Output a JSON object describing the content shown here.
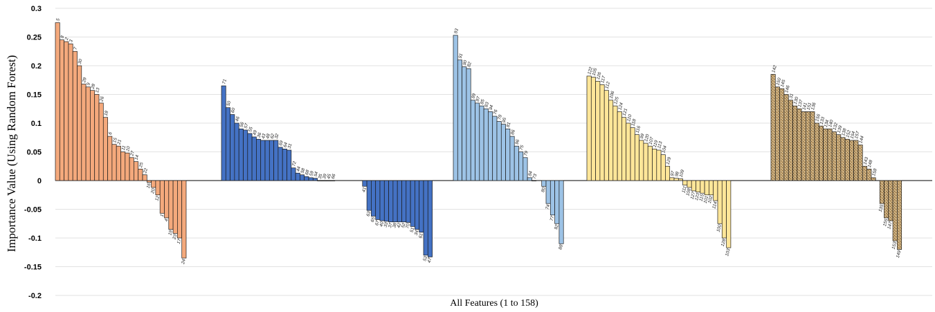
{
  "chart_data": {
    "type": "bar",
    "title": "",
    "xlabel": "All Features (1 to 158)",
    "ylabel": "Importance Value (Using Random Forest)",
    "ylim": [
      -0.2,
      0.3
    ],
    "yticks": [
      0.3,
      0.25,
      0.2,
      0.15,
      0.1,
      0.05,
      0,
      -0.05,
      -0.1,
      -0.15,
      -0.2
    ],
    "ytick_labels": [
      "0.3",
      "0.25",
      "0.2",
      "0.15",
      "0.1",
      "0.05",
      "0",
      "-0.05",
      "-0.1",
      "-0.15",
      "-0.2"
    ],
    "grid": true,
    "groups": [
      {
        "color": "#F4A97C",
        "pattern": "solid",
        "bars": [
          {
            "label": "5",
            "value": 0.275
          },
          {
            "label": "8",
            "value": 0.245
          },
          {
            "label": "2",
            "value": 0.242
          },
          {
            "label": "3",
            "value": 0.238
          },
          {
            "label": "7",
            "value": 0.225
          },
          {
            "label": "30",
            "value": 0.2
          },
          {
            "label": "29",
            "value": 0.168
          },
          {
            "label": "9",
            "value": 0.163
          },
          {
            "label": "28",
            "value": 0.157
          },
          {
            "label": "13",
            "value": 0.15
          },
          {
            "label": "26",
            "value": 0.135
          },
          {
            "label": "18",
            "value": 0.11
          },
          {
            "label": "6",
            "value": 0.077
          },
          {
            "label": "15",
            "value": 0.063
          },
          {
            "label": "21",
            "value": 0.06
          },
          {
            "label": "11",
            "value": 0.05
          },
          {
            "label": "10",
            "value": 0.048
          },
          {
            "label": "27",
            "value": 0.04
          },
          {
            "label": "14",
            "value": 0.033
          },
          {
            "label": "25",
            "value": 0.02
          },
          {
            "label": "22",
            "value": 0.01
          },
          {
            "label": "16",
            "value": -0.003
          },
          {
            "label": "20",
            "value": -0.012
          },
          {
            "label": "12",
            "value": -0.025
          },
          {
            "label": "1",
            "value": -0.057
          },
          {
            "label": "4",
            "value": -0.065
          },
          {
            "label": "19",
            "value": -0.085
          },
          {
            "label": "23",
            "value": -0.092
          },
          {
            "label": "17",
            "value": -0.1
          },
          {
            "label": "24",
            "value": -0.135
          }
        ]
      },
      {
        "color": "#4472C4",
        "pattern": "solid",
        "bars": [
          {
            "label": "71",
            "value": 0.165
          },
          {
            "label": "50",
            "value": 0.127
          },
          {
            "label": "60",
            "value": 0.115
          },
          {
            "label": "46",
            "value": 0.1
          },
          {
            "label": "56",
            "value": 0.09
          },
          {
            "label": "57",
            "value": 0.088
          },
          {
            "label": "55",
            "value": 0.082
          },
          {
            "label": "49",
            "value": 0.076
          },
          {
            "label": "36",
            "value": 0.072
          },
          {
            "label": "43",
            "value": 0.07
          },
          {
            "label": "48",
            "value": 0.07
          },
          {
            "label": "62",
            "value": 0.07
          },
          {
            "label": "32",
            "value": 0.07
          },
          {
            "label": "69",
            "value": 0.058
          },
          {
            "label": "64",
            "value": 0.055
          },
          {
            "label": "31",
            "value": 0.053
          },
          {
            "label": "72",
            "value": 0.022
          },
          {
            "label": "44",
            "value": 0.013
          },
          {
            "label": "58",
            "value": 0.01
          },
          {
            "label": "68",
            "value": 0.007
          },
          {
            "label": "59",
            "value": 0.005
          },
          {
            "label": "54",
            "value": 0.004
          },
          {
            "label": "35",
            "value": 0.0
          },
          {
            "label": "39",
            "value": 0.0
          },
          {
            "label": "45",
            "value": 0.0
          },
          {
            "label": "66",
            "value": 0.0
          },
          {
            "label": "41",
            "value": -0.01
          },
          {
            "label": "63",
            "value": -0.052
          },
          {
            "label": "65",
            "value": -0.062
          },
          {
            "label": "67",
            "value": -0.068
          },
          {
            "label": "40",
            "value": -0.07
          },
          {
            "label": "33",
            "value": -0.071
          },
          {
            "label": "37",
            "value": -0.072
          },
          {
            "label": "38",
            "value": -0.072
          },
          {
            "label": "42",
            "value": -0.072
          },
          {
            "label": "52",
            "value": -0.072
          },
          {
            "label": "70",
            "value": -0.073
          },
          {
            "label": "51",
            "value": -0.08
          },
          {
            "label": "34",
            "value": -0.085
          },
          {
            "label": "61",
            "value": -0.09
          },
          {
            "label": "53",
            "value": -0.13
          },
          {
            "label": "47",
            "value": -0.133
          }
        ]
      },
      {
        "color": "#9DC3E6",
        "pattern": "solid",
        "bars": [
          {
            "label": "93",
            "value": 0.253
          },
          {
            "label": "91",
            "value": 0.21
          },
          {
            "label": "90",
            "value": 0.198
          },
          {
            "label": "82",
            "value": 0.195
          },
          {
            "label": "89",
            "value": 0.14
          },
          {
            "label": "87",
            "value": 0.135
          },
          {
            "label": "85",
            "value": 0.13
          },
          {
            "label": "83",
            "value": 0.125
          },
          {
            "label": "94",
            "value": 0.12
          },
          {
            "label": "76",
            "value": 0.112
          },
          {
            "label": "78",
            "value": 0.103
          },
          {
            "label": "95",
            "value": 0.098
          },
          {
            "label": "81",
            "value": 0.09
          },
          {
            "label": "86",
            "value": 0.077
          },
          {
            "label": "96",
            "value": 0.06
          },
          {
            "label": "75",
            "value": 0.05
          },
          {
            "label": "79",
            "value": 0.04
          },
          {
            "label": "84",
            "value": 0.005
          },
          {
            "label": "73",
            "value": 0.0
          },
          {
            "label": "80",
            "value": -0.01
          },
          {
            "label": "74",
            "value": -0.04
          },
          {
            "label": "77",
            "value": -0.06
          },
          {
            "label": "92",
            "value": -0.075
          },
          {
            "label": "88",
            "value": -0.11
          }
        ]
      },
      {
        "color": "#FFE699",
        "pattern": "solid",
        "bars": [
          {
            "label": "122",
            "value": 0.182
          },
          {
            "label": "105",
            "value": 0.18
          },
          {
            "label": "126",
            "value": 0.173
          },
          {
            "label": "117",
            "value": 0.167
          },
          {
            "label": "112",
            "value": 0.157
          },
          {
            "label": "106",
            "value": 0.14
          },
          {
            "label": "125",
            "value": 0.13
          },
          {
            "label": "124",
            "value": 0.12
          },
          {
            "label": "121",
            "value": 0.11
          },
          {
            "label": "110",
            "value": 0.1
          },
          {
            "label": "118",
            "value": 0.092
          },
          {
            "label": "116",
            "value": 0.08
          },
          {
            "label": "99",
            "value": 0.07
          },
          {
            "label": "120",
            "value": 0.065
          },
          {
            "label": "107",
            "value": 0.06
          },
          {
            "label": "119",
            "value": 0.055
          },
          {
            "label": "113",
            "value": 0.053
          },
          {
            "label": "104",
            "value": 0.045
          },
          {
            "label": "129",
            "value": 0.025
          },
          {
            "label": "97",
            "value": 0.005
          },
          {
            "label": "98",
            "value": 0.004
          },
          {
            "label": "109",
            "value": 0.003
          },
          {
            "label": "111",
            "value": -0.008
          },
          {
            "label": "108",
            "value": -0.012
          },
          {
            "label": "127",
            "value": -0.018
          },
          {
            "label": "123",
            "value": -0.02
          },
          {
            "label": "115",
            "value": -0.022
          },
          {
            "label": "101",
            "value": -0.025
          },
          {
            "label": "102",
            "value": -0.025
          },
          {
            "label": "114",
            "value": -0.035
          },
          {
            "label": "100",
            "value": -0.075
          },
          {
            "label": "128",
            "value": -0.1
          },
          {
            "label": "103",
            "value": -0.117
          }
        ]
      },
      {
        "color": "#C4A472",
        "pattern": "speckled",
        "bars": [
          {
            "label": "142",
            "value": 0.185
          },
          {
            "label": "150",
            "value": 0.163
          },
          {
            "label": "145",
            "value": 0.16
          },
          {
            "label": "146",
            "value": 0.15
          },
          {
            "label": "31",
            "value": 0.14
          },
          {
            "label": "130",
            "value": 0.13
          },
          {
            "label": "137",
            "value": 0.125
          },
          {
            "label": "141",
            "value": 0.12
          },
          {
            "label": "151",
            "value": 0.12
          },
          {
            "label": "136",
            "value": 0.12
          },
          {
            "label": "156",
            "value": 0.1
          },
          {
            "label": "133",
            "value": 0.095
          },
          {
            "label": "134",
            "value": 0.09
          },
          {
            "label": "140",
            "value": 0.09
          },
          {
            "label": "132",
            "value": 0.085
          },
          {
            "label": "139",
            "value": 0.08
          },
          {
            "label": "138",
            "value": 0.075
          },
          {
            "label": "152",
            "value": 0.072
          },
          {
            "label": "154",
            "value": 0.07
          },
          {
            "label": "157",
            "value": 0.07
          },
          {
            "label": "144",
            "value": 0.062
          },
          {
            "label": "143",
            "value": 0.025
          },
          {
            "label": "148",
            "value": 0.02
          },
          {
            "label": "158",
            "value": 0.005
          },
          {
            "label": "135",
            "value": -0.04
          },
          {
            "label": "155",
            "value": -0.065
          },
          {
            "label": "147",
            "value": -0.07
          },
          {
            "label": "153",
            "value": -0.105
          },
          {
            "label": "149",
            "value": -0.12
          }
        ]
      }
    ]
  }
}
